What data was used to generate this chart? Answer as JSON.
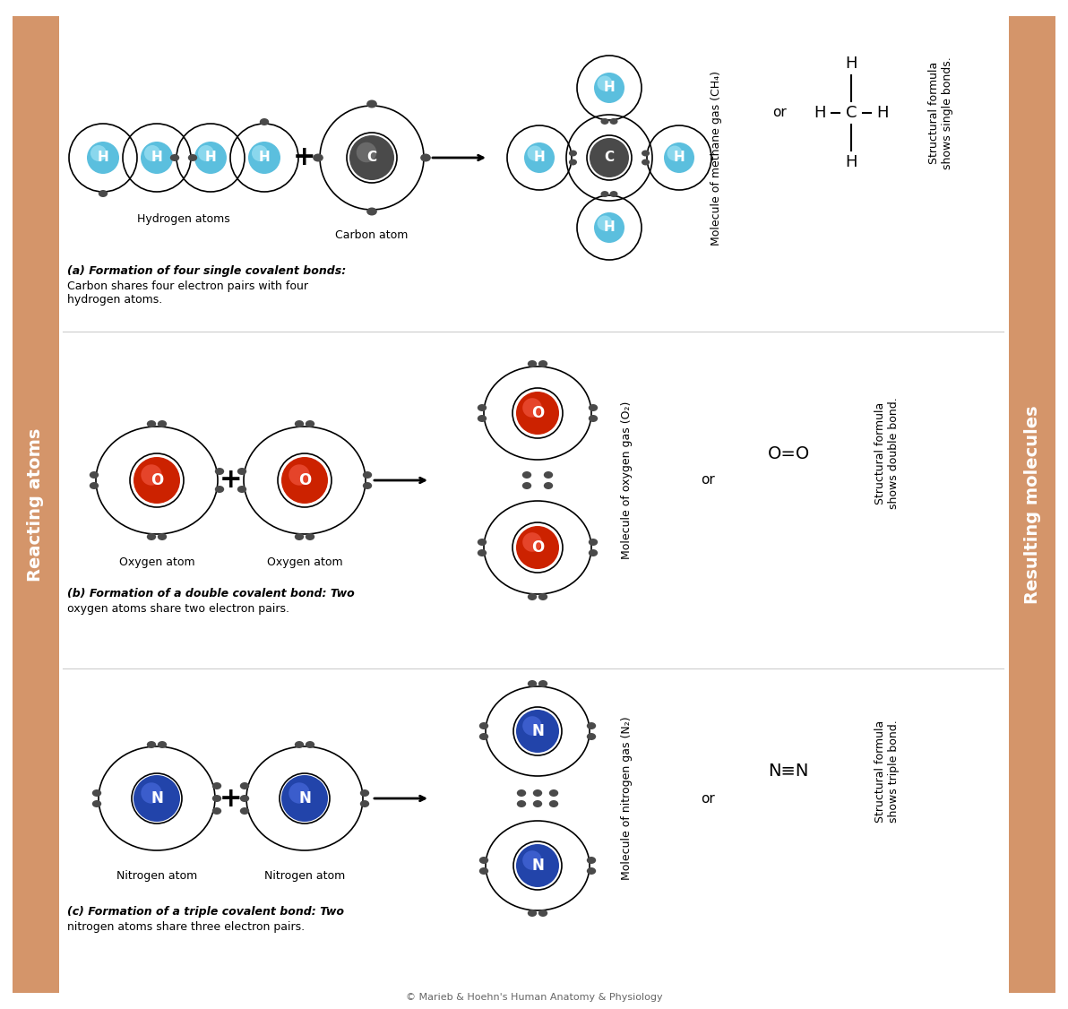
{
  "bg_color": "#ffffff",
  "sidebar_color": "#d4956a",
  "h_color_inner": "#5bbfde",
  "h_color_light": "#a8dff0",
  "c_color": "#4a4a4a",
  "o_color_inner": "#cc2200",
  "o_color_light": "#e86644",
  "n_color_inner": "#2244aa",
  "n_color_light": "#5577cc",
  "electron_color": "#555555",
  "title_react": "Reacting atoms",
  "title_result": "Resulting molecules",
  "label_h_atoms": "Hydrogen atoms",
  "label_c_atom": "Carbon atom",
  "label_o_atom": "Oxygen atom",
  "label_n_atom": "Nitrogen atom",
  "label_ch4": "Molecule of methane gas (CH₄)",
  "label_o2": "Molecule of oxygen gas (O₂)",
  "label_n2": "Molecule of nitrogen gas (N₂)",
  "label_or": "or",
  "label_a_bold": "(a) Formation of four single covalent bonds:",
  "label_a_rest": "Carbon shares four electron pairs with four\nhydrogen atoms.",
  "label_b_bold": "(b) Formation of a double covalent bond: Two",
  "label_b_rest": "oxygen atoms share two electron pairs.",
  "label_c_bold": "(c) Formation of a triple covalent bond: Two",
  "label_c_rest": "nitrogen atoms share three electron pairs.",
  "struct_single": "Structural formula\nshows single bonds.",
  "struct_double": "Structural formula\nshows double bond.",
  "struct_triple": "Structural formula\nshows triple bond.",
  "copyright": "© Marieb & Hoehn's Human Anatomy & Physiology"
}
